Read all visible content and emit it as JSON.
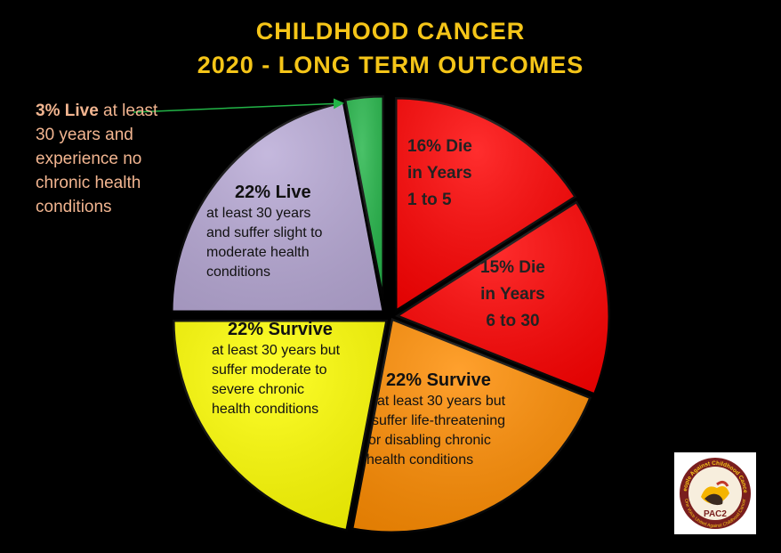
{
  "title_line1": "CHILDHOOD CANCER",
  "title_line2": "2020 - LONG TERM OUTCOMES",
  "chart_data": {
    "type": "pie",
    "title": "CHILDHOOD CANCER 2020 - LONG TERM OUTCOMES",
    "slices": [
      {
        "key": "s16",
        "value": 16,
        "color": "#FF0000",
        "pct": "16% Die",
        "line2": "in Years",
        "line3": "1 to 5"
      },
      {
        "key": "s15",
        "value": 15,
        "color": "#FF0000",
        "pct": "15% Die",
        "line2": "in Years",
        "line3": "6 to 30"
      },
      {
        "key": "s22a",
        "value": 22,
        "color": "#FF8C00",
        "head": "22% Survive",
        "desc": [
          "at least 30 years but",
          "suffer life-threatening",
          "or disabling  chronic",
          "health conditions"
        ]
      },
      {
        "key": "s22b",
        "value": 22,
        "color": "#FFFF00",
        "head": "22% Survive",
        "desc": [
          "at least 30 years but",
          "suffer moderate to",
          "severe chronic",
          "health conditions"
        ]
      },
      {
        "key": "s22c",
        "value": 22,
        "color": "#B8A9D6",
        "head": "22% Live",
        "desc": [
          "at least 30 years",
          "and suffer slight to",
          "moderate health",
          "conditions"
        ]
      },
      {
        "key": "s3",
        "value": 3,
        "color": "#22B447",
        "callout_bold": "3% Live",
        "callout_rest": " at least 30 years and experience no chronic health conditions"
      }
    ]
  },
  "logo": {
    "ring_text_top": "People Against Childhood Cancer",
    "ring_text_bottom": "One Voice United Against Childhood Cancer",
    "center": "PAC2"
  }
}
